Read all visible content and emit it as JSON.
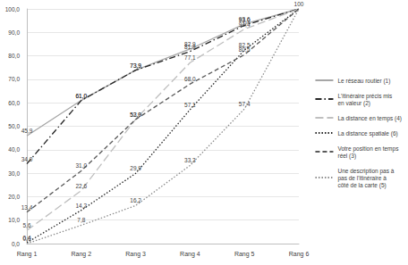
{
  "chart_data": {
    "type": "line",
    "categories": [
      "Rang 1",
      "Rang 2",
      "Rang 3",
      "Rang 4",
      "Rang 5",
      "Rang 6"
    ],
    "ylim": [
      0,
      100
    ],
    "yticks": [
      {
        "value": 0,
        "label": "0,0"
      },
      {
        "value": 10,
        "label": "10,0"
      },
      {
        "value": 20,
        "label": "20,0"
      },
      {
        "value": 30,
        "label": "30,0"
      },
      {
        "value": 40,
        "label": "40,0"
      },
      {
        "value": 50,
        "label": "50,0"
      },
      {
        "value": 60,
        "label": "60,0"
      },
      {
        "value": 70,
        "label": "70,0"
      },
      {
        "value": 80,
        "label": "80,0"
      },
      {
        "value": 90,
        "label": "90,0"
      },
      {
        "value": 100,
        "label": "100,0"
      }
    ],
    "grid": true,
    "legend": "right",
    "data_labels": true,
    "series": [
      {
        "name": "Le réseau routier (1)",
        "color": "#a6a6a6",
        "line_style": "solid",
        "values": [
          45.9,
          61.0,
          73.9,
          82.9,
          93.6,
          100
        ],
        "value_labels": [
          "45,9",
          "61,0",
          "73,9",
          "82,9",
          "93,6",
          "100"
        ]
      },
      {
        "name": "L'itinéraire précis mis en valeur (2)",
        "color": "#262626",
        "line_style": "dashdot",
        "values": [
          34.0,
          61.0,
          73.9,
          81.9,
          93.0,
          100
        ],
        "value_labels": [
          "34,0",
          "61,0",
          "73,9",
          "81,9",
          "93,0",
          null
        ]
      },
      {
        "name": "La distance en temps (4)",
        "color": "#bfbfbf",
        "line_style": "longdash",
        "values": [
          5.6,
          22.6,
          53.0,
          77.1,
          91.4,
          100
        ],
        "value_labels": [
          "5,6",
          "22,6",
          "53,0",
          "77,1",
          "91,4",
          null
        ]
      },
      {
        "name": "La distance spatiale (6)",
        "color": "#262626",
        "line_style": "dotted",
        "values": [
          0.4,
          14.2,
          29.9,
          57.1,
          82.5,
          100
        ],
        "value_labels": [
          "0,4",
          "14,2",
          "29,9",
          "57,1",
          "82,5",
          null
        ]
      },
      {
        "name": "Votre position en temps réel (3)",
        "color": "#595959",
        "line_style": "dashed",
        "values": [
          13.4,
          31.0,
          52.9,
          68.0,
          80.5,
          100
        ],
        "value_labels": [
          "13,4",
          "31,0",
          "52,9",
          "68,0",
          "80,5",
          null
        ]
      },
      {
        "name": "Une description pas à pas de l'itinéraire à côté de la carte (5)",
        "color": "#8c8c8c",
        "line_style": "dotted",
        "values": [
          0.0,
          7.8,
          16.2,
          33.3,
          57.4,
          100
        ],
        "value_labels": [
          "0,0",
          "7,8",
          "16,2",
          "33,3",
          "57,4",
          null
        ]
      }
    ]
  }
}
